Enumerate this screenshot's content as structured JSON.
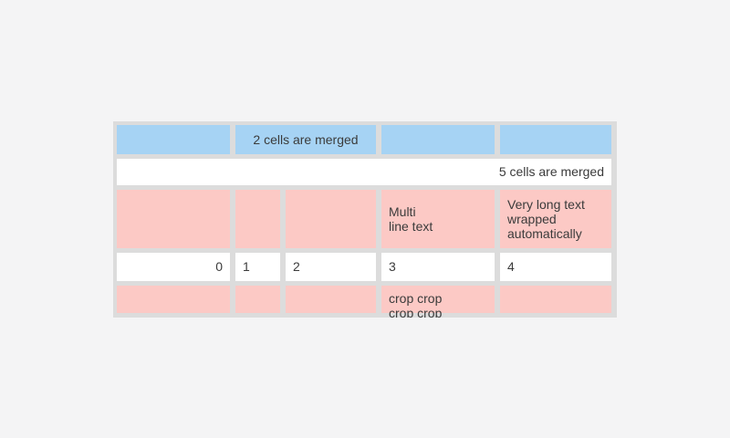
{
  "colors": {
    "page_bg": "#f4f4f5",
    "table_bg": "#dcdcdc",
    "blue": "#a6d3f4",
    "pink": "#fcc9c5",
    "white": "#ffffff",
    "text": "#3b3b3b"
  },
  "table": {
    "row1": {
      "merged_label": "2 cells are merged"
    },
    "row2": {
      "merged_label": "5 cells are merged"
    },
    "row3": {
      "multiline": "Multi\nline text",
      "wrapped": "Very long text wrapped automatically"
    },
    "row4": {
      "values": [
        "0",
        "1",
        "2",
        "3",
        "4"
      ]
    },
    "row5": {
      "cropped": "crop crop crop crop"
    }
  }
}
